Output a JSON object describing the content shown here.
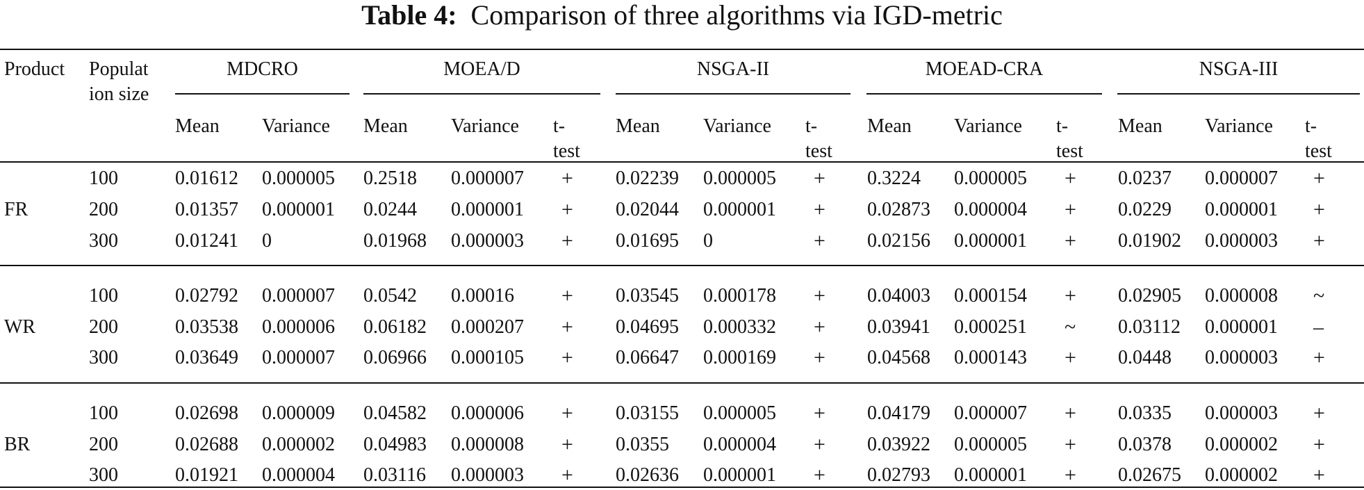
{
  "title": {
    "label": "Table 4:",
    "text": "Comparison of three algorithms via IGD-metric"
  },
  "header": {
    "product": "Product",
    "population": "Population size",
    "groups": [
      {
        "name": "MDCRO",
        "columns": [
          "Mean",
          "Variance"
        ]
      },
      {
        "name": "MOEA/D",
        "columns": [
          "Mean",
          "Variance",
          "t-test"
        ]
      },
      {
        "name": "NSGA-II",
        "columns": [
          "Mean",
          "Variance",
          "t-test"
        ]
      },
      {
        "name": "MOEAD-CRA",
        "columns": [
          "Mean",
          "Variance",
          "t-test"
        ]
      },
      {
        "name": "NSGA-III",
        "columns": [
          "Mean",
          "Variance",
          "t-test"
        ]
      }
    ]
  },
  "products": [
    {
      "name": "FR",
      "rows": [
        [
          "100",
          "0.01612",
          "0.000005",
          "0.2518",
          "0.000007",
          "+",
          "0.02239",
          "0.000005",
          "+",
          "0.3224",
          "0.000005",
          "+",
          "0.0237",
          "0.000007",
          "+"
        ],
        [
          "200",
          "0.01357",
          "0.000001",
          "0.0244",
          "0.000001",
          "+",
          "0.02044",
          "0.000001",
          "+",
          "0.02873",
          "0.000004",
          "+",
          "0.0229",
          "0.000001",
          "+"
        ],
        [
          "300",
          "0.01241",
          "0",
          "0.01968",
          "0.000003",
          "+",
          "0.01695",
          "0",
          "+",
          "0.02156",
          "0.000001",
          "+",
          "0.01902",
          "0.000003",
          "+"
        ]
      ]
    },
    {
      "name": "WR",
      "rows": [
        [
          "100",
          "0.02792",
          "0.000007",
          "0.0542",
          "0.00016",
          "+",
          "0.03545",
          "0.000178",
          "+",
          "0.04003",
          "0.000154",
          "+",
          "0.02905",
          "0.000008",
          "~"
        ],
        [
          "200",
          "0.03538",
          "0.000006",
          "0.06182",
          "0.000207",
          "+",
          "0.04695",
          "0.000332",
          "+",
          "0.03941",
          "0.000251",
          "~",
          "0.03112",
          "0.000001",
          "–"
        ],
        [
          "300",
          "0.03649",
          "0.000007",
          "0.06966",
          "0.000105",
          "+",
          "0.06647",
          "0.000169",
          "+",
          "0.04568",
          "0.000143",
          "+",
          "0.0448",
          "0.000003",
          "+"
        ]
      ]
    },
    {
      "name": "BR",
      "rows": [
        [
          "100",
          "0.02698",
          "0.000009",
          "0.04582",
          "0.000006",
          "+",
          "0.03155",
          "0.000005",
          "+",
          "0.04179",
          "0.000007",
          "+",
          "0.0335",
          "0.000003",
          "+"
        ],
        [
          "200",
          "0.02688",
          "0.000002",
          "0.04983",
          "0.000008",
          "+",
          "0.0355",
          "0.000004",
          "+",
          "0.03922",
          "0.000005",
          "+",
          "0.0378",
          "0.000002",
          "+"
        ],
        [
          "300",
          "0.01921",
          "0.000004",
          "0.03116",
          "0.000003",
          "+",
          "0.02636",
          "0.000001",
          "+",
          "0.02793",
          "0.000001",
          "+",
          "0.02675",
          "0.000002",
          "+"
        ]
      ]
    }
  ]
}
